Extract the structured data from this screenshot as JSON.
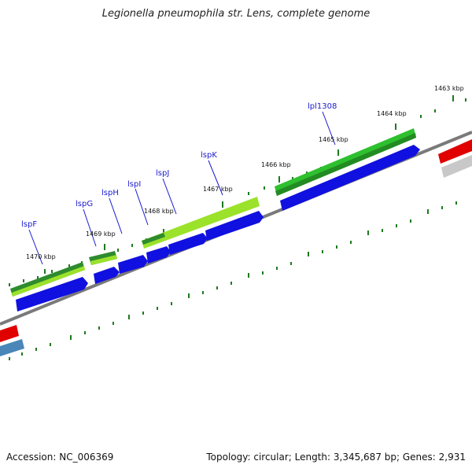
{
  "title": "Legionella pneumophila str. Lens, complete genome",
  "footer": {
    "accession": "Accession: NC_006369",
    "summary": "Topology: circular; Length: 3,345,687 bp; Genes: 2,931"
  },
  "colors": {
    "backbone": "#7a7a7a",
    "tick": "#1f7a1f",
    "gene_dark_green": "#2e8b2e",
    "gene_light_green": "#9be22a",
    "cds_blue": "#1010e0",
    "label_blue": "#1a1ad0",
    "red_feature": "#e00000",
    "steel_blue_feature": "#4a86b8",
    "grey_feature": "#c8c8c8"
  },
  "kbp_labels": [
    "1463 kbp",
    "1464 kbp",
    "1465 kbp",
    "1466 kbp",
    "1467 kbp",
    "1468 kbp",
    "1469 kbp",
    "1470 kbp"
  ],
  "gene_labels": [
    "lspF",
    "lspG",
    "lspH",
    "lspI",
    "lspJ",
    "lspK",
    "lpl1308"
  ]
}
